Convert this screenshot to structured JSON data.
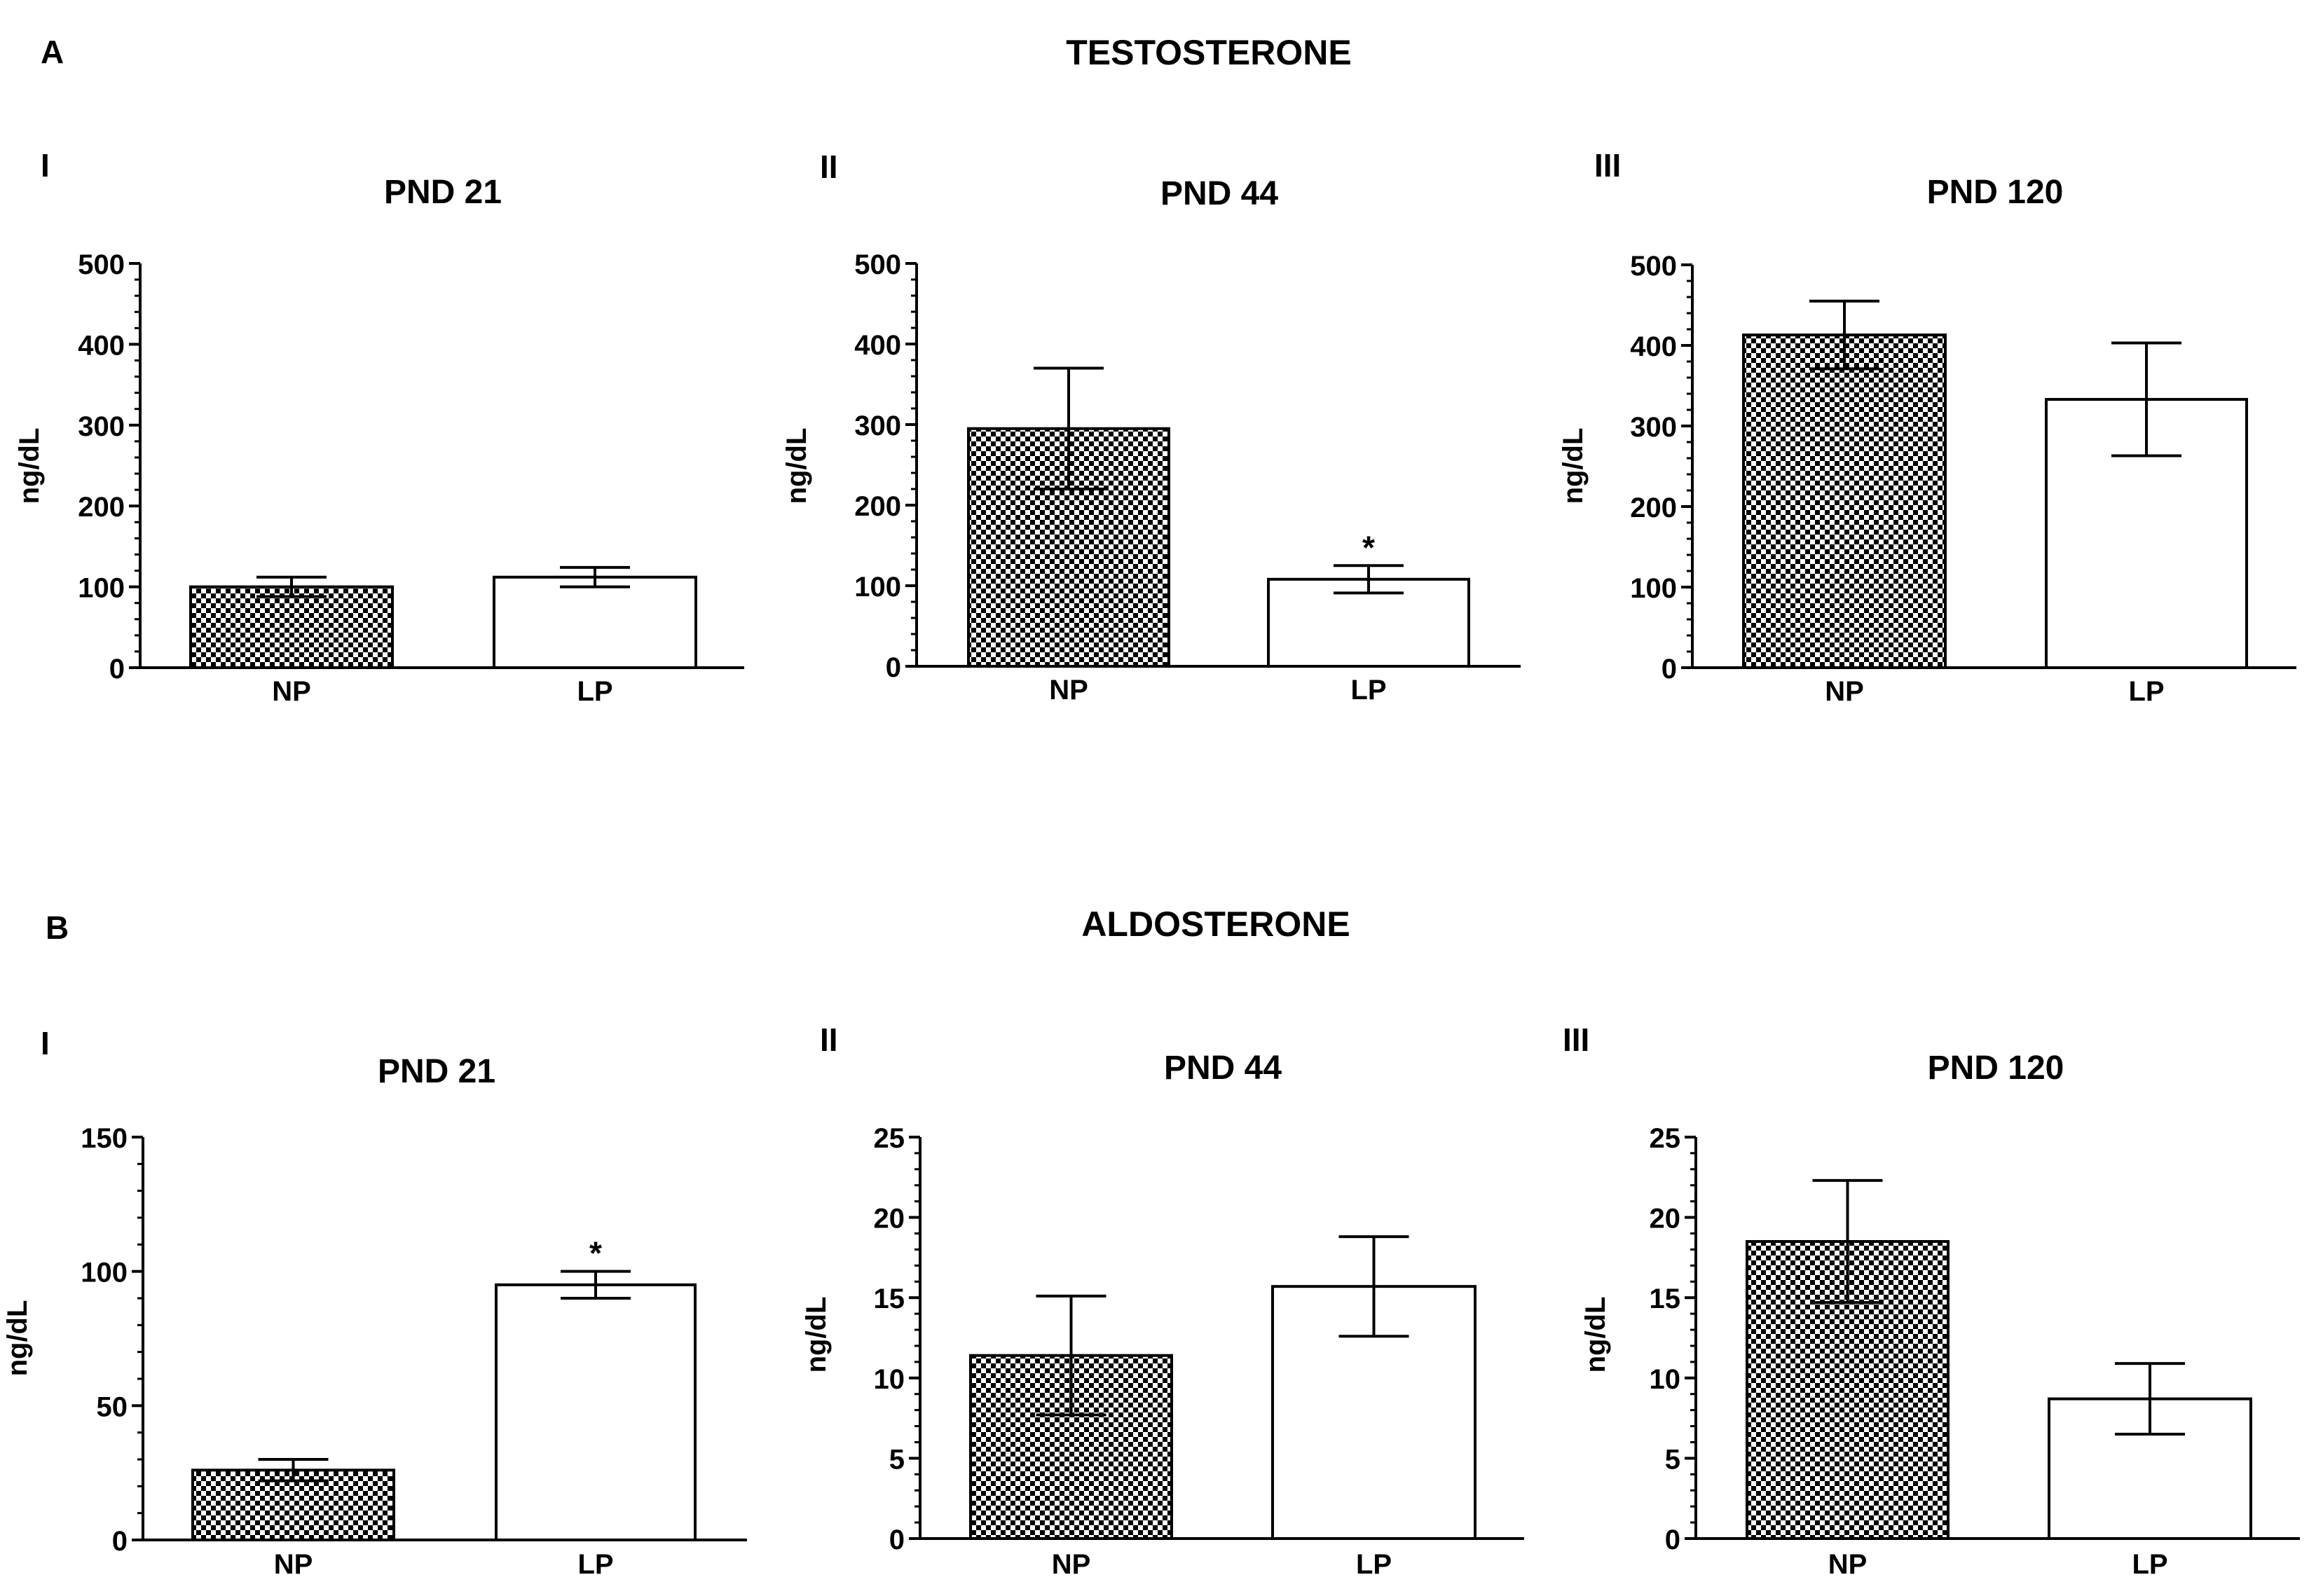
{
  "figure": {
    "panel_a": {
      "letter": "A",
      "title": "TESTOSTERONE"
    },
    "panel_b": {
      "letter": "B",
      "title": "ALDOSTERONE"
    }
  },
  "colors": {
    "np_pattern_dark": "#000000",
    "np_pattern_light": "#ffffff",
    "lp_fill": "#ffffff",
    "axis": "#000000"
  },
  "chart_data": [
    {
      "type": "bar",
      "panel": "A",
      "roman": "I",
      "title": "PND 21",
      "ylabel": "ng/dL",
      "ylim": [
        0,
        500
      ],
      "yticks": [
        0,
        100,
        200,
        300,
        400,
        500
      ],
      "categories": [
        "NP",
        "LP"
      ],
      "values": [
        100,
        112
      ],
      "errors": [
        12,
        12
      ],
      "significance": [
        "",
        ""
      ]
    },
    {
      "type": "bar",
      "panel": "A",
      "roman": "II",
      "title": "PND 44",
      "ylabel": "ng/dL",
      "ylim": [
        0,
        500
      ],
      "yticks": [
        0,
        100,
        200,
        300,
        400,
        500
      ],
      "categories": [
        "NP",
        "LP"
      ],
      "values": [
        295,
        108
      ],
      "errors": [
        75,
        17
      ],
      "significance": [
        "",
        "*"
      ]
    },
    {
      "type": "bar",
      "panel": "A",
      "roman": "III",
      "title": "PND 120",
      "ylabel": "ng/dL",
      "ylim": [
        0,
        500
      ],
      "yticks": [
        0,
        100,
        200,
        300,
        400,
        500
      ],
      "categories": [
        "NP",
        "LP"
      ],
      "values": [
        413,
        333
      ],
      "errors": [
        42,
        70
      ],
      "significance": [
        "",
        ""
      ]
    },
    {
      "type": "bar",
      "panel": "B",
      "roman": "I",
      "title": "PND 21",
      "ylabel": "ng/dL",
      "ylim": [
        0,
        150
      ],
      "yticks": [
        0,
        50,
        100,
        150
      ],
      "categories": [
        "NP",
        "LP"
      ],
      "values": [
        26,
        95
      ],
      "errors": [
        4,
        5
      ],
      "significance": [
        "",
        "*"
      ]
    },
    {
      "type": "bar",
      "panel": "B",
      "roman": "II",
      "title": "PND 44",
      "ylabel": "ng/dL",
      "ylim": [
        0,
        25
      ],
      "yticks": [
        0,
        5,
        10,
        15,
        20,
        25
      ],
      "categories": [
        "NP",
        "LP"
      ],
      "values": [
        11.4,
        15.7
      ],
      "errors": [
        3.7,
        3.1
      ],
      "significance": [
        "",
        ""
      ]
    },
    {
      "type": "bar",
      "panel": "B",
      "roman": "III",
      "title": "PND 120",
      "ylabel": "ng/dL",
      "ylim": [
        0,
        25
      ],
      "yticks": [
        0,
        5,
        10,
        15,
        20,
        25
      ],
      "categories": [
        "NP",
        "LP"
      ],
      "values": [
        18.5,
        8.7
      ],
      "errors": [
        3.8,
        2.2
      ],
      "significance": [
        "",
        ""
      ]
    }
  ]
}
